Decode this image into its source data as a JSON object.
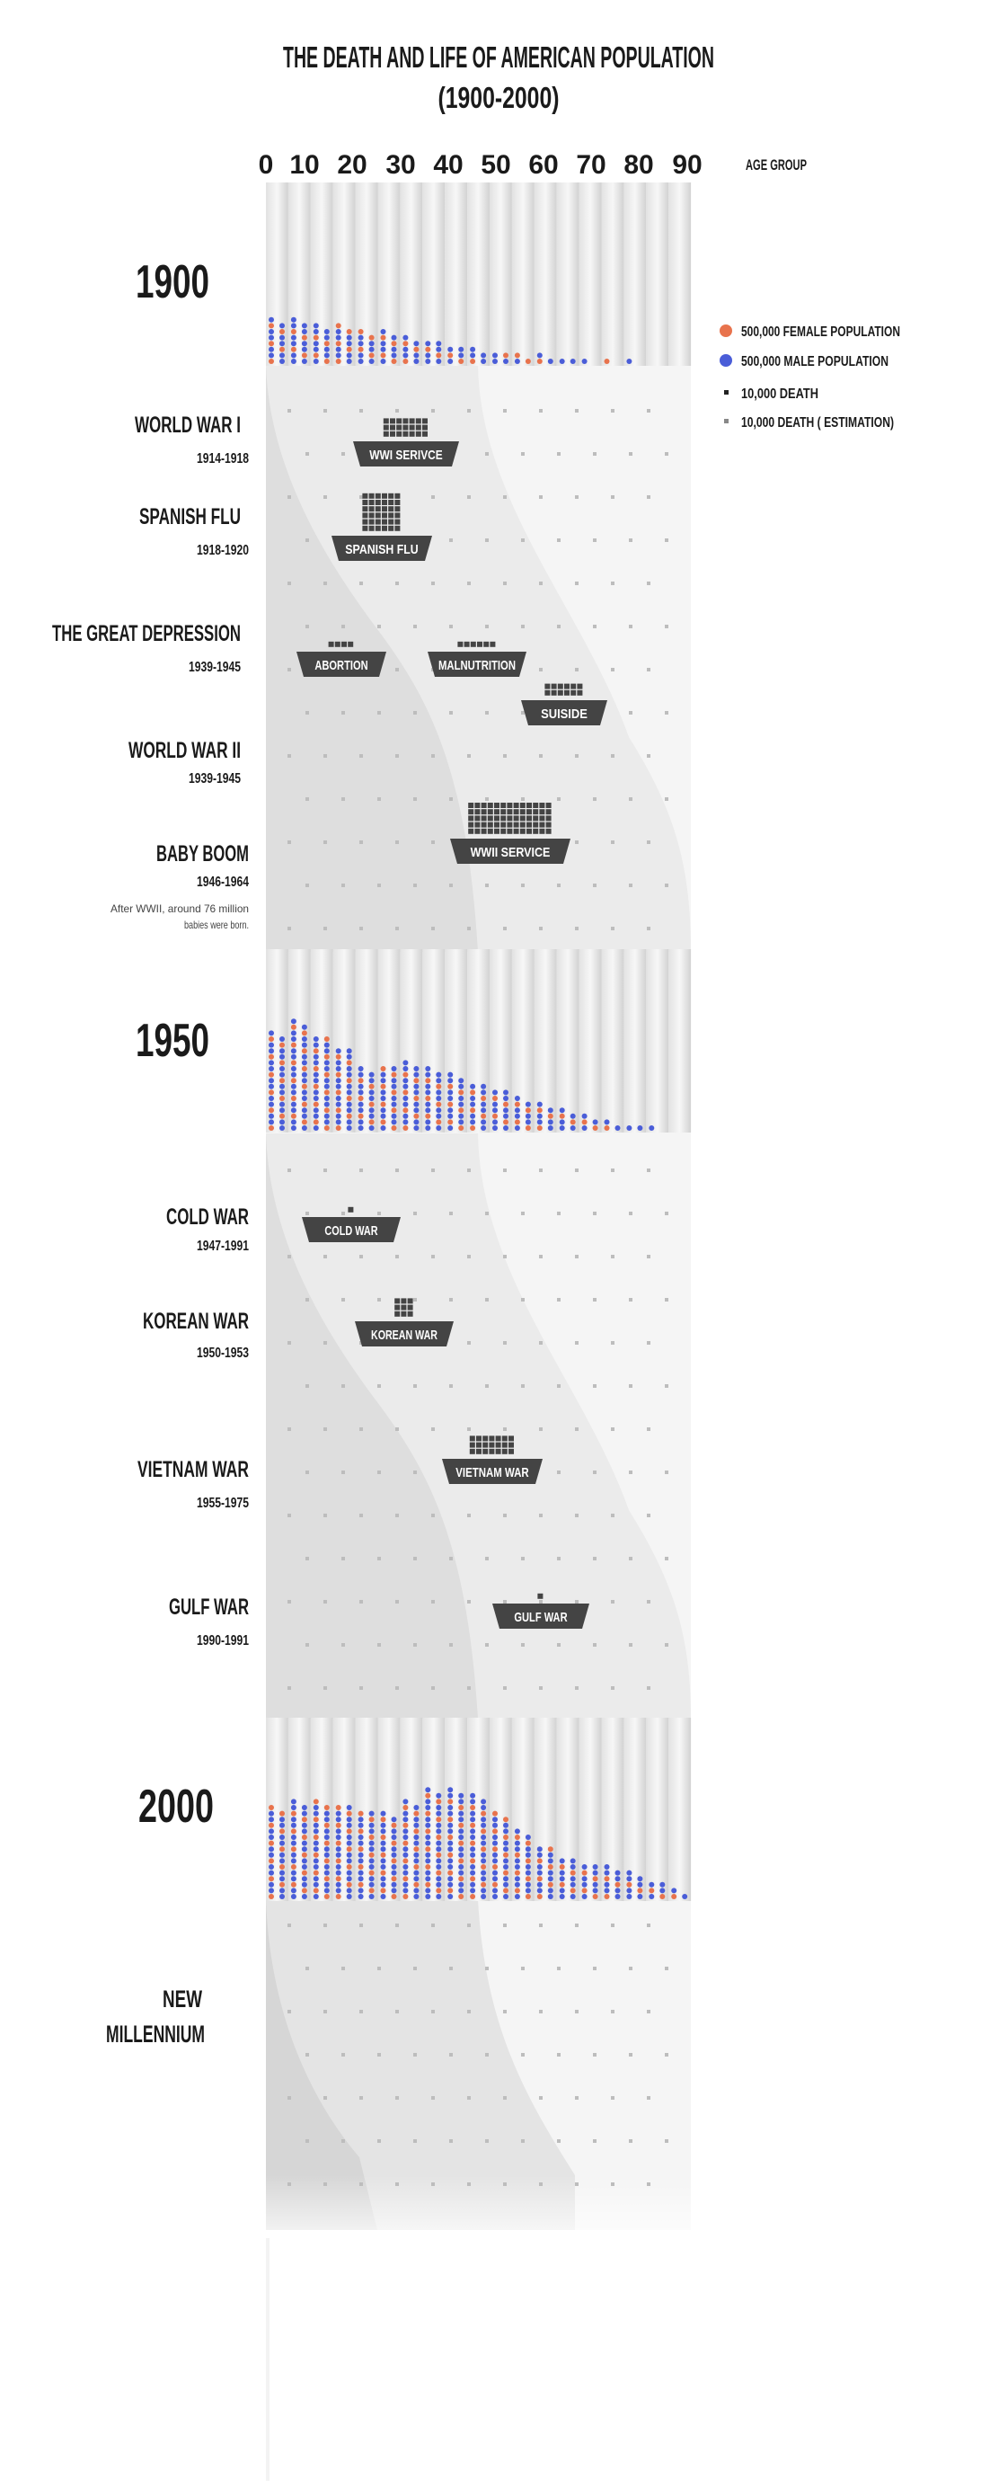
{
  "title_line1": "THE DEATH AND LIFE OF AMERICAN POPULATION",
  "title_line2": "(1900-2000)",
  "axis": {
    "ticks": [
      "0",
      "10",
      "20",
      "30",
      "40",
      "50",
      "60",
      "70",
      "80",
      "90"
    ],
    "label": "AGE GROUP"
  },
  "legend": [
    {
      "label": "500,000 FEMALE POPULATION",
      "color": "#e8734d",
      "kind": "big-dot"
    },
    {
      "label": "500,000 MALE POPULATION",
      "color": "#4a5dd8",
      "kind": "big-dot"
    },
    {
      "label": "10,000 DEATH",
      "color": "#222222",
      "kind": "square"
    },
    {
      "label": "10,000 DEATH ( ESTIMATION)",
      "color": "#888888",
      "kind": "square"
    }
  ],
  "colors": {
    "female": "#e8734d",
    "male": "#4a5dd8",
    "death_icon": "#444444",
    "band": "#d6d6d6",
    "band_light": "#ebebeb"
  },
  "chart_data": {
    "type": "bar",
    "unit_per_dot": 500000,
    "x_label": "AGE GROUP",
    "age_groups": [
      "0",
      "5",
      "10",
      "15",
      "20",
      "25",
      "30",
      "35",
      "40",
      "45",
      "50",
      "55",
      "60",
      "65",
      "70",
      "75",
      "80",
      "85",
      "90"
    ],
    "years": [
      {
        "label": "1900",
        "dots_per_age_group": [
          15,
          15,
          13,
          13,
          11,
          11,
          9,
          8,
          6,
          5,
          4,
          3,
          3,
          2,
          1,
          1,
          1,
          0,
          0
        ]
      },
      {
        "label": "1950",
        "dots_per_age_group": [
          33,
          37,
          32,
          28,
          21,
          22,
          23,
          21,
          19,
          16,
          14,
          11,
          9,
          7,
          5,
          3,
          2,
          1,
          0
        ]
      },
      {
        "label": "2000",
        "dots_per_age_group": [
          31,
          33,
          33,
          32,
          30,
          29,
          33,
          37,
          37,
          35,
          29,
          23,
          18,
          14,
          12,
          11,
          9,
          6,
          3
        ]
      }
    ]
  },
  "events": [
    {
      "name": "WORLD WAR I",
      "years": "1914-1918",
      "badges": [
        "WWI SERIVCE"
      ]
    },
    {
      "name": "SPANISH FLU",
      "years": "1918-1920",
      "badges": [
        "SPANISH FLU"
      ]
    },
    {
      "name": "THE GREAT DEPRESSION",
      "years": "1939-1945",
      "badges": [
        "ABORTION",
        "MALNUTRITION",
        "SUISIDE"
      ]
    },
    {
      "name": "WORLD WAR II",
      "years": "1939-1945",
      "badges": []
    },
    {
      "name": "BABY BOOM",
      "years": "1946-1964",
      "note_line1": "After WWII, around 76 million",
      "note_line2": "babies were born.",
      "badges": [
        "WWII SERVICE"
      ]
    },
    {
      "name": "COLD WAR",
      "years": "1947-1991",
      "badges": [
        "COLD WAR"
      ]
    },
    {
      "name": "KOREAN WAR",
      "years": "1950-1953",
      "badges": [
        "KOREAN WAR"
      ]
    },
    {
      "name": "VIETNAM WAR",
      "years": "1955-1975",
      "badges": [
        "VIETNAM WAR"
      ]
    },
    {
      "name": "GULF WAR",
      "years": "1990-1991",
      "badges": [
        "GULF WAR"
      ]
    },
    {
      "name_line1": "NEW",
      "name_line2": "MILLENNIUM"
    }
  ]
}
